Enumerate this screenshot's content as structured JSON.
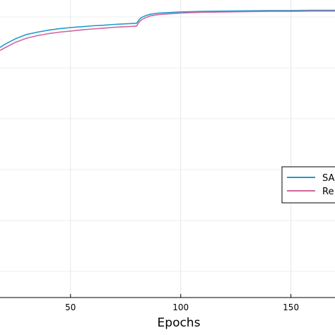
{
  "chart_data": {
    "type": "line",
    "title": "",
    "xlabel": "Epochs",
    "ylabel": "",
    "xlim": [
      18,
      170
    ],
    "ylim": [
      0,
      1.0
    ],
    "x_ticks": [
      50,
      100,
      150
    ],
    "grid": true,
    "legend_position": "right",
    "series": [
      {
        "name": "SA",
        "color": "#1f9bd1",
        "x": [
          18,
          20,
          25,
          30,
          35,
          40,
          45,
          50,
          55,
          60,
          65,
          70,
          75,
          80,
          81,
          82,
          84,
          86,
          90,
          95,
          100,
          110,
          120,
          130,
          140,
          150,
          160,
          170
        ],
        "y": [
          0.865,
          0.875,
          0.895,
          0.91,
          0.918,
          0.925,
          0.93,
          0.934,
          0.937,
          0.94,
          0.942,
          0.945,
          0.947,
          0.949,
          0.96,
          0.968,
          0.975,
          0.98,
          0.984,
          0.986,
          0.988,
          0.99,
          0.991,
          0.992,
          0.993,
          0.993,
          0.994,
          0.994
        ]
      },
      {
        "name": "Re",
        "color": "#d1669a",
        "x": [
          18,
          20,
          25,
          30,
          35,
          40,
          45,
          50,
          55,
          60,
          65,
          70,
          75,
          80,
          81,
          82,
          84,
          86,
          90,
          95,
          100,
          110,
          120,
          130,
          140,
          150,
          160,
          170
        ],
        "y": [
          0.855,
          0.863,
          0.883,
          0.897,
          0.906,
          0.913,
          0.918,
          0.922,
          0.926,
          0.929,
          0.932,
          0.935,
          0.937,
          0.939,
          0.952,
          0.96,
          0.968,
          0.974,
          0.979,
          0.982,
          0.984,
          0.987,
          0.988,
          0.989,
          0.99,
          0.99,
          0.991,
          0.991
        ]
      }
    ]
  }
}
